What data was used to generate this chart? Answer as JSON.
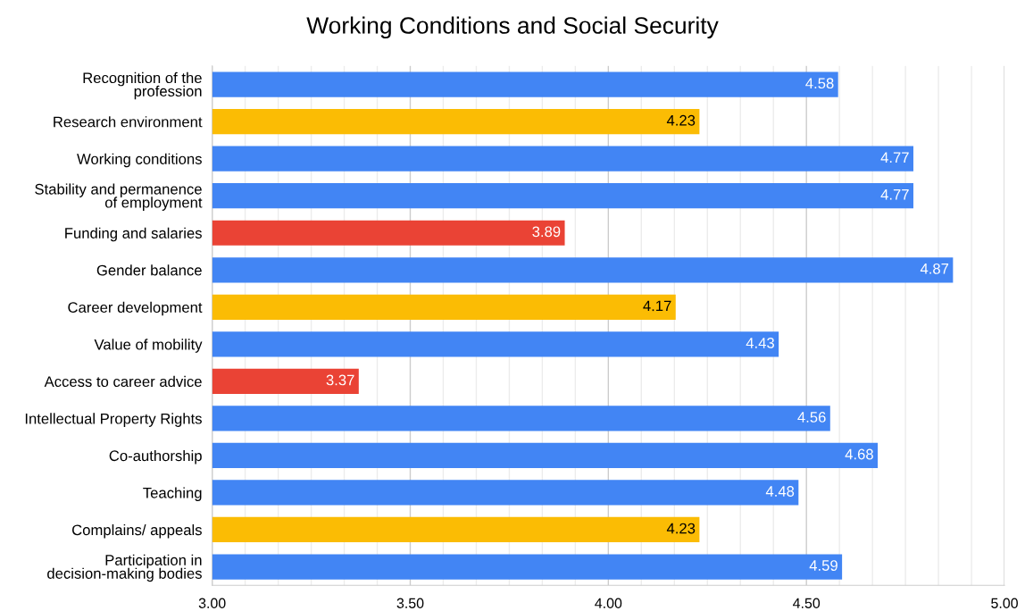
{
  "chart_data": {
    "type": "bar",
    "orientation": "horizontal",
    "title": "Working Conditions and Social Security",
    "categories": [
      "Recognition of the\nprofession",
      "Research environment",
      "Working conditions",
      "Stability and permanence\nof employment",
      "Funding and salaries",
      "Gender balance",
      "Career development",
      "Value of mobility",
      "Access to career advice",
      "Intellectual Property Rights",
      "Co-authorship",
      "Teaching",
      "Complains/ appeals",
      "Participation in\ndecision-making bodies"
    ],
    "values": [
      4.58,
      4.23,
      4.77,
      4.77,
      3.89,
      4.87,
      4.17,
      4.43,
      3.37,
      4.56,
      4.68,
      4.48,
      4.23,
      4.59
    ],
    "colors": [
      "#4285f4",
      "#fbbc04",
      "#4285f4",
      "#4285f4",
      "#ea4335",
      "#4285f4",
      "#fbbc04",
      "#4285f4",
      "#ea4335",
      "#4285f4",
      "#4285f4",
      "#4285f4",
      "#fbbc04",
      "#4285f4"
    ],
    "data_labels": true,
    "xlim": [
      3.0,
      5.0
    ],
    "xticks": [
      {
        "value": 3.0,
        "label": "3.00"
      },
      {
        "value": 3.0833,
        "label": null
      },
      {
        "value": 3.1667,
        "label": null
      },
      {
        "value": 3.25,
        "label": null
      },
      {
        "value": 3.3333,
        "label": null
      },
      {
        "value": 3.4167,
        "label": null
      },
      {
        "value": 3.5,
        "label": "3.50"
      },
      {
        "value": 3.5833,
        "label": null
      },
      {
        "value": 3.6667,
        "label": null
      },
      {
        "value": 3.75,
        "label": null
      },
      {
        "value": 3.8333,
        "label": null
      },
      {
        "value": 3.9167,
        "label": null
      },
      {
        "value": 4.0,
        "label": "4.00"
      },
      {
        "value": 4.0833,
        "label": null
      },
      {
        "value": 4.1667,
        "label": null
      },
      {
        "value": 4.25,
        "label": null
      },
      {
        "value": 4.3333,
        "label": null
      },
      {
        "value": 4.4167,
        "label": null
      },
      {
        "value": 4.5,
        "label": "4.50"
      },
      {
        "value": 4.5833,
        "label": null
      },
      {
        "value": 4.6667,
        "label": null
      },
      {
        "value": 4.75,
        "label": null
      },
      {
        "value": 4.8333,
        "label": null
      },
      {
        "value": 4.9167,
        "label": null
      },
      {
        "value": 5.0,
        "label": "5.00"
      }
    ],
    "grid": "x"
  }
}
